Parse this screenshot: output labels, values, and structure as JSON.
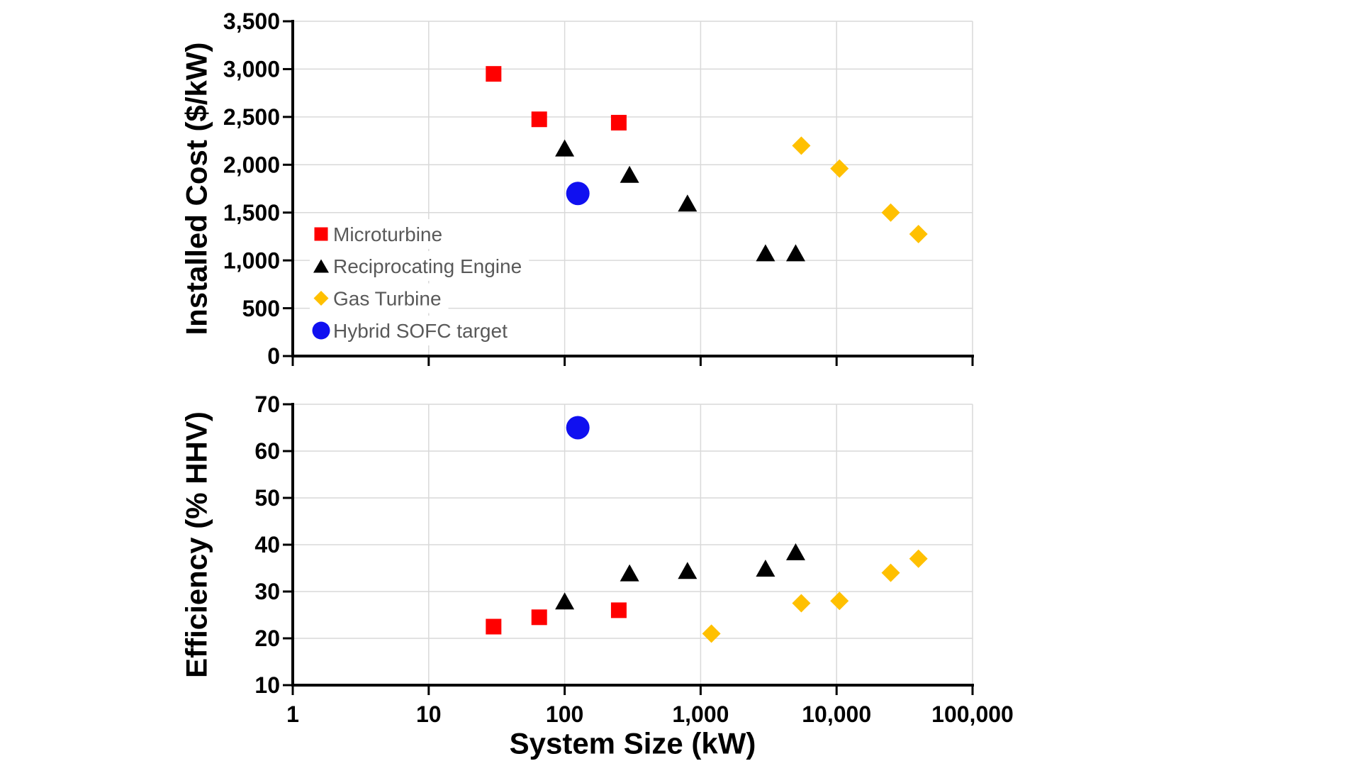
{
  "figure": {
    "background": "#FFFFFF",
    "grid_color": "#D9D9D9",
    "axis_color": "#000000",
    "x_axis": {
      "title": "System Size (kW)",
      "scale": "log",
      "min": 1,
      "max": 100000,
      "tick_labels": [
        "1",
        "10",
        "100",
        "1,000",
        "10,000",
        "100,000"
      ],
      "tick_values": [
        1,
        10,
        100,
        1000,
        10000,
        100000
      ]
    },
    "legend": {
      "location": "inside lower-left of top chart",
      "text_color": "#595959",
      "items": [
        {
          "label": "Microturbine",
          "marker": "square",
          "color": "#FF0000"
        },
        {
          "label": "Reciprocating Engine",
          "marker": "triangle",
          "color": "#000000"
        },
        {
          "label": "Gas Turbine",
          "marker": "diamond",
          "color": "#FFC000"
        },
        {
          "label": "Hybrid SOFC target",
          "marker": "circle",
          "color": "#1010F0"
        }
      ]
    }
  },
  "chart_data": [
    {
      "type": "scatter",
      "title": "",
      "xlabel": "System Size (kW)",
      "ylabel": "Installed Cost ($/kW)",
      "x_scale": "log",
      "xlim": [
        1,
        100000
      ],
      "ylim": [
        0,
        3500
      ],
      "grid": true,
      "y_tick_step": 500,
      "y_tick_values": [
        3500,
        3000,
        2500,
        2000,
        1500,
        1000,
        500,
        0
      ],
      "y_tick_labels": [
        "3,500",
        "3,000",
        "2,500",
        "2,000",
        "1,500",
        "1,000",
        "500",
        "0"
      ],
      "series": [
        {
          "name": "Microturbine",
          "marker": "square",
          "color": "#FF0000",
          "points": [
            [
              30,
              2950
            ],
            [
              65,
              2475
            ],
            [
              250,
              2440
            ]
          ]
        },
        {
          "name": "Reciprocating Engine",
          "marker": "triangle",
          "color": "#000000",
          "points": [
            [
              100,
              2175
            ],
            [
              300,
              1900
            ],
            [
              800,
              1600
            ],
            [
              3000,
              1080
            ],
            [
              5000,
              1080
            ]
          ]
        },
        {
          "name": "Gas Turbine",
          "marker": "diamond",
          "color": "#FFC000",
          "points": [
            [
              5500,
              2200
            ],
            [
              10500,
              1960
            ],
            [
              25000,
              1500
            ],
            [
              40000,
              1275
            ]
          ]
        },
        {
          "name": "Hybrid SOFC target",
          "marker": "circle",
          "color": "#1010F0",
          "points": [
            [
              125,
              1700
            ]
          ]
        }
      ]
    },
    {
      "type": "scatter",
      "title": "",
      "xlabel": "System Size (kW)",
      "ylabel": "Efficiency (% HHV)",
      "x_scale": "log",
      "xlim": [
        1,
        100000
      ],
      "ylim": [
        10,
        70
      ],
      "grid": true,
      "y_tick_step": 10,
      "y_tick_values": [
        70,
        60,
        50,
        40,
        30,
        20,
        10
      ],
      "y_tick_labels": [
        "70",
        "60",
        "50",
        "40",
        "30",
        "20",
        "10"
      ],
      "series": [
        {
          "name": "Microturbine",
          "marker": "square",
          "color": "#FF0000",
          "points": [
            [
              30,
              22.5
            ],
            [
              65,
              24.5
            ],
            [
              250,
              26
            ]
          ]
        },
        {
          "name": "Reciprocating Engine",
          "marker": "triangle",
          "color": "#000000",
          "points": [
            [
              100,
              28
            ],
            [
              300,
              34
            ],
            [
              800,
              34.5
            ],
            [
              3000,
              35
            ],
            [
              5000,
              38.5
            ]
          ]
        },
        {
          "name": "Gas Turbine",
          "marker": "diamond",
          "color": "#FFC000",
          "points": [
            [
              1200,
              21
            ],
            [
              5500,
              27.5
            ],
            [
              10500,
              28
            ],
            [
              25000,
              34
            ],
            [
              40000,
              37
            ]
          ]
        },
        {
          "name": "Hybrid SOFC target",
          "marker": "circle",
          "color": "#1010F0",
          "points": [
            [
              125,
              65
            ]
          ]
        }
      ]
    }
  ]
}
